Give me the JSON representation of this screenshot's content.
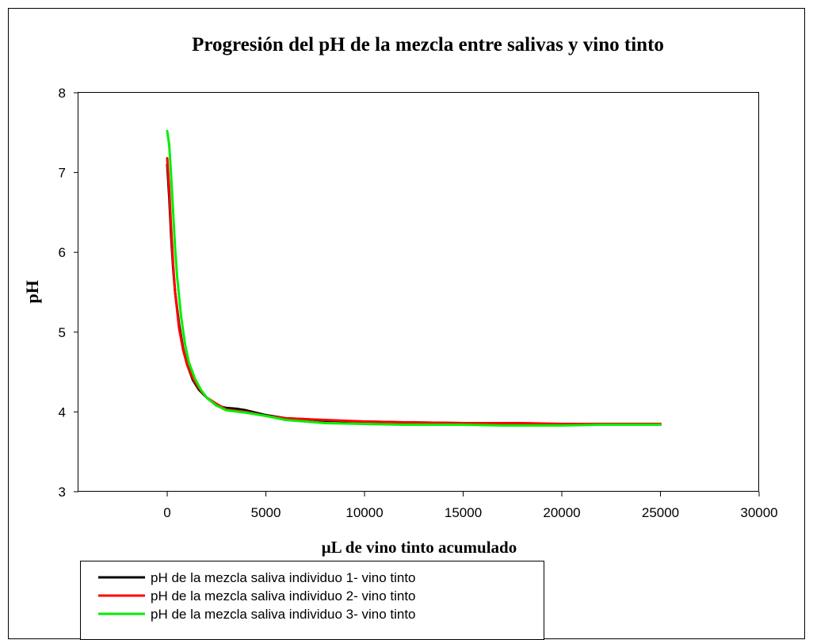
{
  "chart_data": {
    "type": "line",
    "title": "Progresión del pH de la mezcla entre salivas y vino tinto",
    "xlabel": "μL de vino tinto acumulado",
    "ylabel": "pH",
    "xlim": [
      -4500,
      30000
    ],
    "ylim": [
      3,
      8
    ],
    "xticks": [
      0,
      5000,
      10000,
      15000,
      20000,
      25000,
      30000
    ],
    "yticks": [
      3,
      4,
      5,
      6,
      7,
      8
    ],
    "grid": false,
    "legend_position": "bottom-left",
    "series": [
      {
        "name": "pH de la mezcla saliva individuo 1- vino tinto",
        "color": "#000000",
        "points": [
          [
            0,
            7.1
          ],
          [
            100,
            6.7
          ],
          [
            200,
            6.2
          ],
          [
            300,
            5.8
          ],
          [
            400,
            5.5
          ],
          [
            600,
            5.1
          ],
          [
            800,
            4.8
          ],
          [
            1000,
            4.6
          ],
          [
            1300,
            4.4
          ],
          [
            1600,
            4.28
          ],
          [
            2000,
            4.18
          ],
          [
            2500,
            4.08
          ],
          [
            3000,
            4.05
          ],
          [
            3500,
            4.04
          ],
          [
            4000,
            4.02
          ],
          [
            5000,
            3.96
          ],
          [
            6000,
            3.92
          ],
          [
            7000,
            3.91
          ],
          [
            8000,
            3.89
          ],
          [
            10000,
            3.88
          ],
          [
            12000,
            3.87
          ],
          [
            15000,
            3.86
          ],
          [
            18000,
            3.85
          ],
          [
            20000,
            3.85
          ],
          [
            22000,
            3.84
          ],
          [
            25000,
            3.84
          ]
        ]
      },
      {
        "name": "pH de la mezcla saliva individuo 2- vino tinto",
        "color": "#ff0000",
        "points": [
          [
            0,
            7.18
          ],
          [
            100,
            6.8
          ],
          [
            200,
            6.3
          ],
          [
            300,
            5.85
          ],
          [
            400,
            5.5
          ],
          [
            600,
            5.05
          ],
          [
            800,
            4.78
          ],
          [
            1000,
            4.6
          ],
          [
            1300,
            4.42
          ],
          [
            1600,
            4.3
          ],
          [
            2000,
            4.18
          ],
          [
            2500,
            4.1
          ],
          [
            3000,
            4.03
          ],
          [
            4000,
            4.0
          ],
          [
            5000,
            3.95
          ],
          [
            6000,
            3.92
          ],
          [
            7000,
            3.91
          ],
          [
            8000,
            3.9
          ],
          [
            10000,
            3.88
          ],
          [
            12000,
            3.87
          ],
          [
            15000,
            3.86
          ],
          [
            18000,
            3.86
          ],
          [
            20000,
            3.85
          ],
          [
            22000,
            3.85
          ],
          [
            25000,
            3.85
          ]
        ]
      },
      {
        "name": "pH de la mezcla saliva individuo 3- vino tinto",
        "color": "#00ee00",
        "points": [
          [
            0,
            7.52
          ],
          [
            100,
            7.35
          ],
          [
            200,
            6.95
          ],
          [
            300,
            6.5
          ],
          [
            400,
            6.05
          ],
          [
            500,
            5.7
          ],
          [
            700,
            5.2
          ],
          [
            900,
            4.85
          ],
          [
            1100,
            4.62
          ],
          [
            1400,
            4.42
          ],
          [
            1700,
            4.28
          ],
          [
            2000,
            4.18
          ],
          [
            2500,
            4.08
          ],
          [
            3000,
            4.02
          ],
          [
            4000,
            3.99
          ],
          [
            5000,
            3.95
          ],
          [
            6000,
            3.9
          ],
          [
            7000,
            3.88
          ],
          [
            8000,
            3.86
          ],
          [
            10000,
            3.85
          ],
          [
            12000,
            3.84
          ],
          [
            15000,
            3.84
          ],
          [
            17000,
            3.83
          ],
          [
            20000,
            3.83
          ],
          [
            22000,
            3.84
          ],
          [
            25000,
            3.84
          ]
        ]
      }
    ]
  }
}
